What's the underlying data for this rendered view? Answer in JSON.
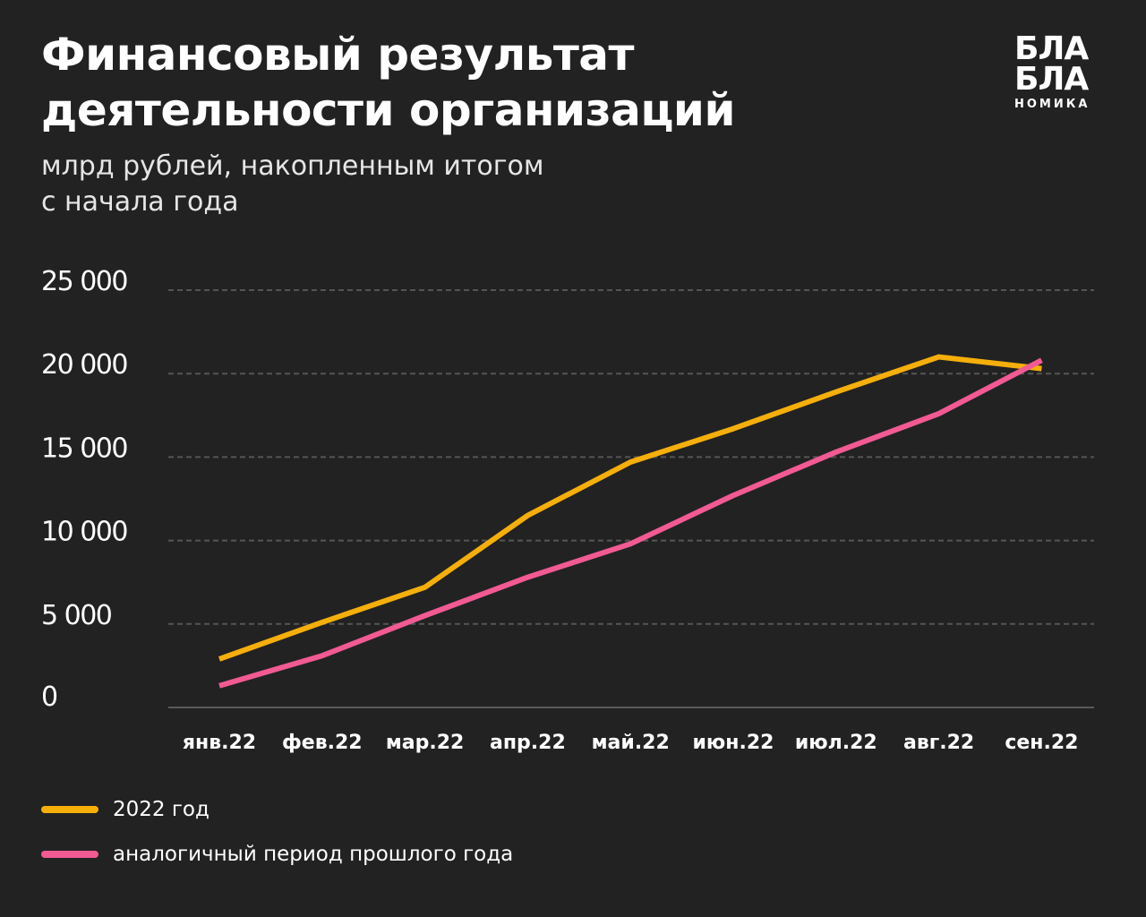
{
  "header": {
    "title_line1": "Финансовый результат",
    "title_line2": "деятельности организаций",
    "subtitle_line1": "млрд рублей, накопленным итогом",
    "subtitle_line2": "с начала года"
  },
  "logo": {
    "line1": "БЛА",
    "line2": "БЛА",
    "line3": "НОМИКА"
  },
  "colors": {
    "background": "#222222",
    "series_2022": "#F5AF0B",
    "series_prev": "#F25A93",
    "grid": "#555555"
  },
  "chart_data": {
    "type": "line",
    "title": "Финансовый результат деятельности организаций",
    "subtitle": "млрд рублей, накопленным итогом с начала года",
    "xlabel": "",
    "ylabel": "",
    "ylim": [
      0,
      25000
    ],
    "yticks": [
      0,
      5000,
      10000,
      15000,
      20000,
      25000
    ],
    "ytick_labels": [
      "0",
      "5 000",
      "10 000",
      "15 000",
      "20 000",
      "25 000"
    ],
    "categories": [
      "янв.22",
      "фев.22",
      "мар.22",
      "апр.22",
      "май.22",
      "июн.22",
      "июл.22",
      "авг.22",
      "сен.22"
    ],
    "series": [
      {
        "name": "2022 год",
        "color": "#F5AF0B",
        "values": [
          2900,
          5100,
          7200,
          11500,
          14700,
          16700,
          18900,
          21000,
          20300
        ]
      },
      {
        "name": "аналогичный период прошлого года",
        "color": "#F25A93",
        "values": [
          1300,
          3100,
          5500,
          7800,
          9800,
          12700,
          15300,
          17600,
          20800
        ]
      }
    ],
    "grid": true,
    "legend_position": "bottom-left"
  }
}
